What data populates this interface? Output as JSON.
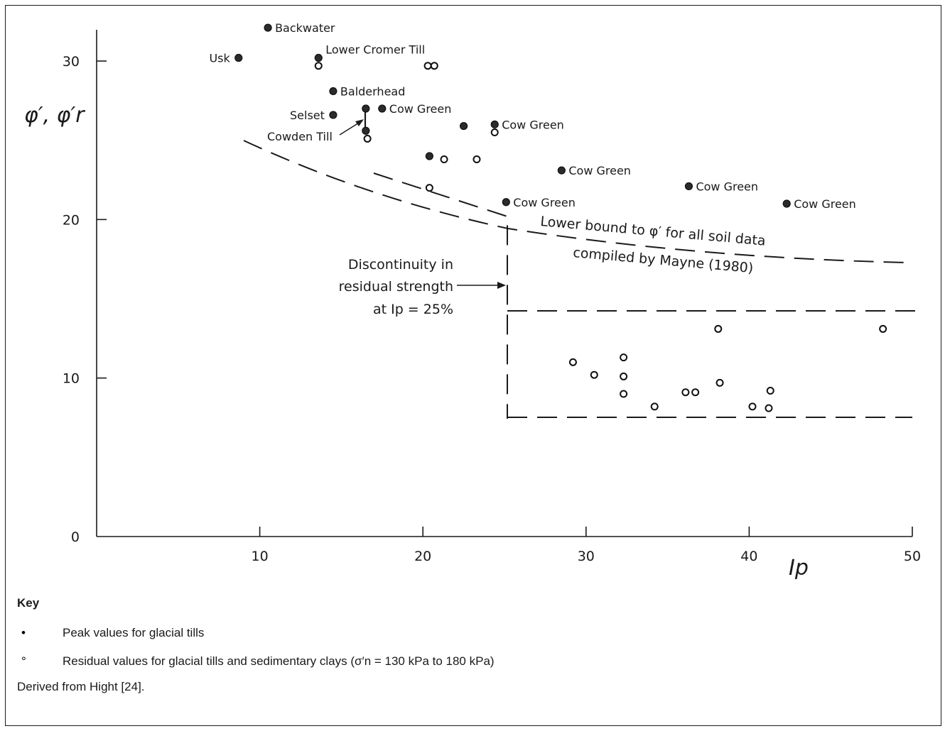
{
  "chart_data": {
    "type": "scatter",
    "ylabel": "φ′, φ′r",
    "xlabel": "Ip",
    "xlim": [
      0,
      50
    ],
    "ylim": [
      0,
      32
    ],
    "xticks": [
      "10",
      "20",
      "30",
      "40",
      "50"
    ],
    "yticks": [
      "0",
      "10",
      "20",
      "30"
    ],
    "peak_points": [
      {
        "x": 10.5,
        "y": 32.1,
        "label": "Backwater",
        "label_side": "right"
      },
      {
        "x": 8.7,
        "y": 30.2,
        "label": "Usk",
        "label_side": "left"
      },
      {
        "x": 13.6,
        "y": 30.2,
        "label": "Lower Cromer Till",
        "label_side": "right-up"
      },
      {
        "x": 14.5,
        "y": 28.1,
        "label": "Balderhead",
        "label_side": "right"
      },
      {
        "x": 14.5,
        "y": 26.6,
        "label": "Selset",
        "label_side": "left"
      },
      {
        "x": 16.5,
        "y": 27.0,
        "label": "",
        "label_side": ""
      },
      {
        "x": 16.5,
        "y": 25.6,
        "label": "",
        "label_side": ""
      },
      {
        "x": 17.5,
        "y": 27.0,
        "label": "Cow Green",
        "label_side": "right"
      },
      {
        "x": 22.5,
        "y": 25.9,
        "label": "",
        "label_side": ""
      },
      {
        "x": 24.4,
        "y": 26.0,
        "label": "Cow Green",
        "label_side": "right"
      },
      {
        "x": 20.4,
        "y": 24.0,
        "label": "",
        "label_side": ""
      },
      {
        "x": 28.5,
        "y": 23.1,
        "label": "Cow Green",
        "label_side": "right"
      },
      {
        "x": 36.3,
        "y": 22.1,
        "label": "Cow Green",
        "label_side": "right"
      },
      {
        "x": 25.1,
        "y": 21.1,
        "label": "Cow Green",
        "label_side": "right"
      },
      {
        "x": 42.3,
        "y": 21.0,
        "label": "Cow Green",
        "label_side": "right"
      }
    ],
    "residual_points": [
      {
        "x": 13.6,
        "y": 29.7
      },
      {
        "x": 20.3,
        "y": 29.7
      },
      {
        "x": 20.7,
        "y": 29.7
      },
      {
        "x": 16.6,
        "y": 25.1
      },
      {
        "x": 24.4,
        "y": 25.5
      },
      {
        "x": 21.3,
        "y": 23.8
      },
      {
        "x": 23.3,
        "y": 23.8
      },
      {
        "x": 20.4,
        "y": 22.0
      },
      {
        "x": 29.2,
        "y": 11.0
      },
      {
        "x": 30.5,
        "y": 10.2
      },
      {
        "x": 32.3,
        "y": 11.3
      },
      {
        "x": 32.3,
        "y": 10.1
      },
      {
        "x": 32.3,
        "y": 9.0
      },
      {
        "x": 34.2,
        "y": 8.2
      },
      {
        "x": 36.1,
        "y": 9.1
      },
      {
        "x": 36.7,
        "y": 9.1
      },
      {
        "x": 38.1,
        "y": 13.1
      },
      {
        "x": 38.2,
        "y": 9.7
      },
      {
        "x": 40.2,
        "y": 8.2
      },
      {
        "x": 41.2,
        "y": 8.1
      },
      {
        "x": 41.3,
        "y": 9.2
      },
      {
        "x": 48.2,
        "y": 13.1
      }
    ],
    "cowden_till_label": "Cowden Till",
    "lower_bound_label_1": "Lower bound to φ′ for all soil data",
    "lower_bound_label_2": "compiled by Mayne (1980)",
    "discontinuity_label_1": "Discontinuity in",
    "discontinuity_label_2": "residual strength",
    "discontinuity_label_3": "at Ip = 25%"
  },
  "key": {
    "title": "Key",
    "peak_text": "Peak values for glacial tills",
    "residual_text": "Residual values for glacial tills and sedimentary clays (σ′n = 130 kPa to 180 kPa)",
    "source_text": "Derived from Hight [24]."
  }
}
